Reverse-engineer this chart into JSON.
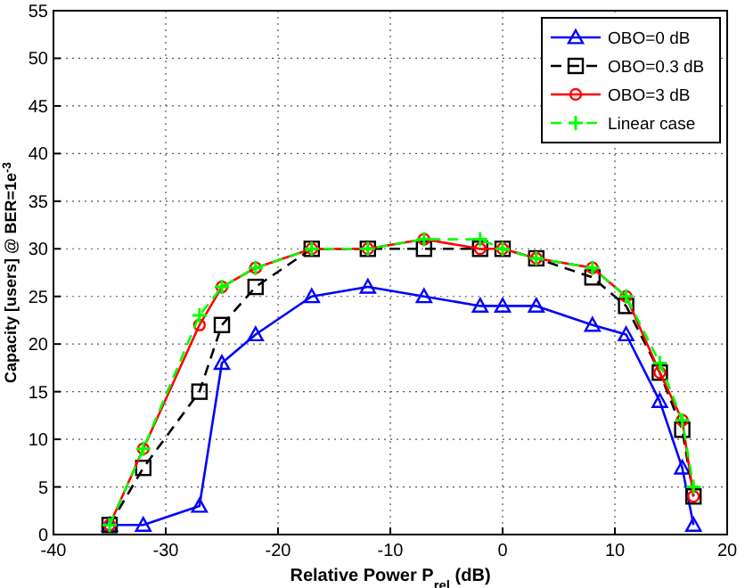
{
  "chart_data": {
    "type": "line",
    "xlabel": "Relative Power P$_{rel}$ (dB)",
    "ylabel": "Capacity [users] @ BER=1e$^{-3}$",
    "x": [
      -35,
      -32,
      -27,
      -25,
      -22,
      -17,
      -12,
      -7,
      -2,
      0,
      3,
      8,
      11,
      14,
      16,
      17
    ],
    "xlim": [
      -40,
      20
    ],
    "xticks": [
      -40,
      -30,
      -20,
      -10,
      0,
      10,
      20
    ],
    "ylim": [
      0,
      55
    ],
    "yticks": [
      0,
      5,
      10,
      15,
      20,
      25,
      30,
      35,
      40,
      45,
      50,
      55
    ],
    "grid": true,
    "legend": "top right",
    "series": [
      {
        "name": "OBO=0 dB",
        "color": "#0000ff",
        "marker": "triangle",
        "line_style": "solid",
        "values": [
          1,
          1,
          3,
          18,
          21,
          25,
          26,
          25,
          24,
          24,
          24,
          22,
          21,
          14,
          7,
          1
        ]
      },
      {
        "name": "OBO=0.3 dB",
        "color": "#000000",
        "marker": "square",
        "line_style": "dashed",
        "values": [
          1,
          7,
          15,
          22,
          26,
          30,
          30,
          30,
          30,
          30,
          29,
          27,
          24,
          17,
          11,
          4
        ]
      },
      {
        "name": "OBO=3 dB",
        "color": "#ff0000",
        "marker": "circle",
        "line_style": "solid",
        "values": [
          1,
          9,
          22,
          26,
          28,
          30,
          30,
          31,
          30,
          30,
          29,
          28,
          25,
          17,
          12,
          4
        ]
      },
      {
        "name": "Linear case",
        "color": "#00ff00",
        "marker": "cross",
        "line_style": "dashed",
        "values": [
          1,
          9,
          23,
          26,
          28,
          30,
          30,
          31,
          31,
          30,
          29,
          28,
          25,
          18,
          12,
          5
        ]
      }
    ]
  }
}
